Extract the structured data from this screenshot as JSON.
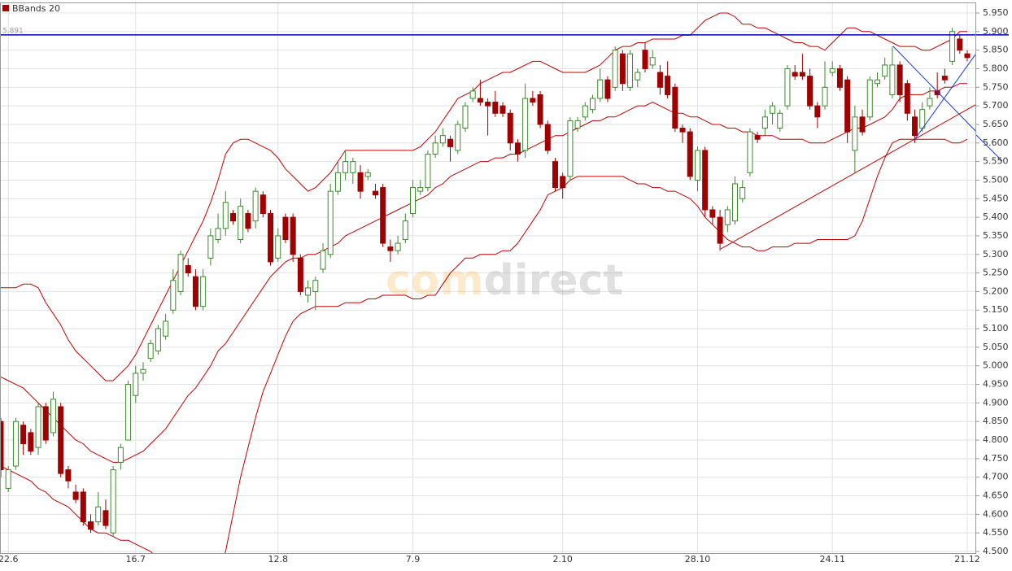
{
  "chart_data": {
    "type": "candlestick",
    "legend": "BBands 20",
    "legend_color": "#a00000",
    "watermark": {
      "left": "com",
      "right": "direct"
    },
    "up_color": "#3b8a2b",
    "down_color": "#a00000",
    "hline": 5.891,
    "hline_color": "#0000c0",
    "grid": true,
    "ylim": [
      4.5,
      5.95
    ],
    "yticks": [
      {
        "value": 4.5,
        "label": "4.500"
      },
      {
        "value": 4.55,
        "label": "4.550"
      },
      {
        "value": 4.6,
        "label": "4.600"
      },
      {
        "value": 4.65,
        "label": "4.650"
      },
      {
        "value": 4.7,
        "label": "4.700"
      },
      {
        "value": 4.75,
        "label": "4.750"
      },
      {
        "value": 4.8,
        "label": "4.800"
      },
      {
        "value": 4.85,
        "label": "4.850"
      },
      {
        "value": 4.9,
        "label": "4.900"
      },
      {
        "value": 4.95,
        "label": "4.950"
      },
      {
        "value": 5.0,
        "label": "5.000"
      },
      {
        "value": 5.05,
        "label": "5.050"
      },
      {
        "value": 5.1,
        "label": "5.100"
      },
      {
        "value": 5.15,
        "label": "5.150"
      },
      {
        "value": 5.2,
        "label": "5.200"
      },
      {
        "value": 5.25,
        "label": "5.250"
      },
      {
        "value": 5.3,
        "label": "5.300"
      },
      {
        "value": 5.35,
        "label": "5.350"
      },
      {
        "value": 5.4,
        "label": "5.400"
      },
      {
        "value": 5.45,
        "label": "5.450"
      },
      {
        "value": 5.5,
        "label": "5.500"
      },
      {
        "value": 5.55,
        "label": "5.550"
      },
      {
        "value": 5.6,
        "label": "5.600"
      },
      {
        "value": 5.65,
        "label": "5.650"
      },
      {
        "value": 5.7,
        "label": "5.700"
      },
      {
        "value": 5.75,
        "label": "5.750"
      },
      {
        "value": 5.8,
        "label": "5.800"
      },
      {
        "value": 5.85,
        "label": "5.850"
      },
      {
        "value": 5.9,
        "label": "5.900"
      },
      {
        "value": 5.95,
        "label": "5.950"
      }
    ],
    "categories": [
      null,
      "22.6",
      null,
      null,
      null,
      null,
      null,
      null,
      null,
      null,
      null,
      null,
      null,
      null,
      null,
      null,
      null,
      null,
      "16.7",
      null,
      null,
      null,
      null,
      null,
      null,
      null,
      null,
      null,
      null,
      null,
      null,
      null,
      null,
      null,
      null,
      null,
      null,
      "12.8",
      null,
      null,
      null,
      null,
      null,
      null,
      null,
      null,
      null,
      null,
      null,
      null,
      null,
      null,
      null,
      null,
      null,
      "7.9",
      null,
      null,
      null,
      null,
      null,
      null,
      null,
      null,
      null,
      null,
      null,
      null,
      null,
      null,
      null,
      null,
      null,
      null,
      null,
      "2.10",
      null,
      null,
      null,
      null,
      null,
      null,
      null,
      null,
      null,
      null,
      null,
      null,
      null,
      null,
      null,
      null,
      null,
      "28.10",
      null,
      null,
      null,
      null,
      null,
      null,
      null,
      null,
      null,
      null,
      null,
      null,
      null,
      null,
      null,
      null,
      null,
      "24.11",
      null,
      null,
      null,
      null,
      null,
      null,
      null,
      null,
      null,
      null,
      null,
      null,
      null,
      null,
      null,
      null,
      null,
      "21.12"
    ],
    "open": [
      4.85,
      4.67,
      4.73,
      4.84,
      4.82,
      4.78,
      4.89,
      4.82,
      4.89,
      4.72,
      4.66,
      4.66,
      4.58,
      4.58,
      4.61,
      4.55,
      4.74,
      4.8,
      4.92,
      4.98,
      5.02,
      5.04,
      5.08,
      5.15,
      5.2,
      5.27,
      5.24,
      5.16,
      5.29,
      5.34,
      5.37,
      5.41,
      5.34,
      5.41,
      5.39,
      5.46,
      5.41,
      5.29,
      5.4,
      5.4,
      5.29,
      5.19,
      5.2,
      5.26,
      5.3,
      5.47,
      5.52,
      5.52,
      5.52,
      5.51,
      5.47,
      5.48,
      5.32,
      5.31,
      5.34,
      5.41,
      5.47,
      5.48,
      5.57,
      5.6,
      5.61,
      5.58,
      5.64,
      5.72,
      5.72,
      5.71,
      5.71,
      5.7,
      5.68,
      5.6,
      5.58,
      5.72,
      5.73,
      5.65,
      5.55,
      5.51,
      5.51,
      5.64,
      5.67,
      5.69,
      5.72,
      5.77,
      5.75,
      5.84,
      5.75,
      5.77,
      5.85,
      5.81,
      5.79,
      5.78,
      5.75,
      5.64,
      5.63,
      5.5,
      5.58,
      5.42,
      5.4,
      5.38,
      5.39,
      5.45,
      5.52,
      5.62,
      5.64,
      5.68,
      5.64,
      5.7,
      5.79,
      5.79,
      5.78,
      5.7,
      5.7,
      5.79,
      5.8,
      5.77,
      5.58,
      5.67,
      5.67,
      5.76,
      5.78,
      5.73,
      5.81,
      5.76,
      5.67,
      5.64,
      5.7,
      5.74,
      5.78,
      5.82,
      5.88,
      5.84
    ],
    "high": [
      4.86,
      4.73,
      4.86,
      4.85,
      4.83,
      4.9,
      4.9,
      4.93,
      4.9,
      4.73,
      4.68,
      4.67,
      4.6,
      4.66,
      4.64,
      4.73,
      4.79,
      4.96,
      5.0,
      5.01,
      5.07,
      5.11,
      5.14,
      5.26,
      5.31,
      5.29,
      5.26,
      5.26,
      5.37,
      5.41,
      5.47,
      5.42,
      5.45,
      5.42,
      5.48,
      5.47,
      5.42,
      5.37,
      5.41,
      5.41,
      5.3,
      5.23,
      5.24,
      5.33,
      5.49,
      5.55,
      5.58,
      5.56,
      5.54,
      5.53,
      5.49,
      5.49,
      5.34,
      5.35,
      5.41,
      5.5,
      5.5,
      5.58,
      5.62,
      5.64,
      5.62,
      5.66,
      5.71,
      5.75,
      5.77,
      5.72,
      5.74,
      5.71,
      5.69,
      5.61,
      5.76,
      5.74,
      5.74,
      5.66,
      5.56,
      5.52,
      5.67,
      5.67,
      5.71,
      5.73,
      5.8,
      5.78,
      5.86,
      5.85,
      5.85,
      5.8,
      5.87,
      5.85,
      5.81,
      5.82,
      5.76,
      5.65,
      5.64,
      5.59,
      5.59,
      5.43,
      5.42,
      5.43,
      5.51,
      5.5,
      5.64,
      5.63,
      5.69,
      5.71,
      5.69,
      5.81,
      5.81,
      5.84,
      5.8,
      5.71,
      5.82,
      5.82,
      5.81,
      5.78,
      5.7,
      5.69,
      5.78,
      5.79,
      5.83,
      5.86,
      5.82,
      5.77,
      5.69,
      5.71,
      5.75,
      5.79,
      5.8,
      5.91,
      5.89,
      5.85
    ],
    "low": [
      4.7,
      4.66,
      4.72,
      4.76,
      4.76,
      4.76,
      4.79,
      4.81,
      4.7,
      4.67,
      4.63,
      4.57,
      4.55,
      4.57,
      4.56,
      4.54,
      4.72,
      4.8,
      4.9,
      4.96,
      5.01,
      5.03,
      5.07,
      5.14,
      5.19,
      5.24,
      5.15,
      5.15,
      5.27,
      5.33,
      5.35,
      5.38,
      5.33,
      5.36,
      5.37,
      5.4,
      5.27,
      5.28,
      5.33,
      5.28,
      5.19,
      5.17,
      5.15,
      5.25,
      5.29,
      5.46,
      5.5,
      5.49,
      5.45,
      5.5,
      5.45,
      5.32,
      5.28,
      5.3,
      5.33,
      5.4,
      5.46,
      5.47,
      5.56,
      5.59,
      5.55,
      5.57,
      5.63,
      5.71,
      5.7,
      5.62,
      5.67,
      5.67,
      5.58,
      5.55,
      5.56,
      5.7,
      5.64,
      5.57,
      5.47,
      5.45,
      5.5,
      5.63,
      5.66,
      5.68,
      5.71,
      5.71,
      5.74,
      5.74,
      5.74,
      5.75,
      5.79,
      5.8,
      5.73,
      5.72,
      5.63,
      5.6,
      5.5,
      5.47,
      5.4,
      5.38,
      5.31,
      5.36,
      5.38,
      5.44,
      5.51,
      5.6,
      5.62,
      5.65,
      5.63,
      5.69,
      5.77,
      5.77,
      5.69,
      5.64,
      5.69,
      5.78,
      5.74,
      5.6,
      5.52,
      5.62,
      5.66,
      5.75,
      5.77,
      5.72,
      5.71,
      5.66,
      5.6,
      5.63,
      5.69,
      5.72,
      5.76,
      5.81,
      5.84,
      5.82
    ],
    "close": [
      4.72,
      4.72,
      4.85,
      4.79,
      4.77,
      4.89,
      4.8,
      4.91,
      4.71,
      4.69,
      4.64,
      4.58,
      4.56,
      4.62,
      4.57,
      4.72,
      4.78,
      4.95,
      4.98,
      4.99,
      5.06,
      5.1,
      5.12,
      5.23,
      5.3,
      5.25,
      5.16,
      5.24,
      5.35,
      5.37,
      5.44,
      5.39,
      5.43,
      5.37,
      5.47,
      5.41,
      5.28,
      5.35,
      5.34,
      5.3,
      5.2,
      5.21,
      5.23,
      5.31,
      5.47,
      5.52,
      5.55,
      5.55,
      5.47,
      5.52,
      5.46,
      5.33,
      5.31,
      5.33,
      5.39,
      5.48,
      5.48,
      5.57,
      5.6,
      5.62,
      5.59,
      5.65,
      5.7,
      5.74,
      5.71,
      5.7,
      5.68,
      5.68,
      5.6,
      5.57,
      5.72,
      5.71,
      5.65,
      5.58,
      5.48,
      5.48,
      5.66,
      5.66,
      5.7,
      5.72,
      5.77,
      5.72,
      5.85,
      5.76,
      5.84,
      5.79,
      5.8,
      5.83,
      5.75,
      5.73,
      5.64,
      5.63,
      5.51,
      5.58,
      5.42,
      5.4,
      5.33,
      5.42,
      5.49,
      5.48,
      5.63,
      5.61,
      5.67,
      5.7,
      5.68,
      5.8,
      5.78,
      5.78,
      5.7,
      5.67,
      5.75,
      5.8,
      5.75,
      5.63,
      5.67,
      5.63,
      5.77,
      5.77,
      5.81,
      5.81,
      5.73,
      5.68,
      5.62,
      5.69,
      5.72,
      5.73,
      5.77,
      5.9,
      5.85,
      5.83
    ],
    "bands": {
      "name": "BBands 20",
      "color": "#c00000",
      "upper": [
        5.21,
        5.21,
        5.21,
        5.22,
        5.22,
        5.21,
        5.17,
        5.14,
        5.11,
        5.07,
        5.04,
        5.02,
        5.0,
        4.98,
        4.96,
        4.96,
        4.98,
        5.0,
        5.03,
        5.07,
        5.11,
        5.15,
        5.19,
        5.23,
        5.27,
        5.31,
        5.35,
        5.39,
        5.44,
        5.5,
        5.57,
        5.6,
        5.61,
        5.61,
        5.6,
        5.59,
        5.58,
        5.56,
        5.53,
        5.51,
        5.49,
        5.47,
        5.48,
        5.5,
        5.52,
        5.55,
        5.58,
        5.58,
        5.58,
        5.58,
        5.58,
        5.58,
        5.58,
        5.58,
        5.58,
        5.58,
        5.59,
        5.61,
        5.63,
        5.66,
        5.69,
        5.72,
        5.73,
        5.74,
        5.76,
        5.77,
        5.78,
        5.79,
        5.79,
        5.8,
        5.81,
        5.82,
        5.82,
        5.81,
        5.8,
        5.79,
        5.79,
        5.79,
        5.79,
        5.8,
        5.81,
        5.83,
        5.85,
        5.86,
        5.86,
        5.87,
        5.87,
        5.88,
        5.88,
        5.88,
        5.88,
        5.89,
        5.89,
        5.91,
        5.93,
        5.94,
        5.95,
        5.95,
        5.94,
        5.92,
        5.92,
        5.91,
        5.91,
        5.9,
        5.89,
        5.88,
        5.87,
        5.87,
        5.86,
        5.86,
        5.85,
        5.87,
        5.89,
        5.91,
        5.91,
        5.9,
        5.9,
        5.89,
        5.88,
        5.87,
        5.86,
        5.86,
        5.86,
        5.85,
        5.85,
        5.86,
        5.87,
        5.88,
        5.9,
        5.9
      ],
      "middle": [
        4.97,
        4.96,
        4.95,
        4.94,
        4.92,
        4.9,
        4.88,
        4.86,
        4.84,
        4.82,
        4.8,
        4.79,
        4.77,
        4.76,
        4.75,
        4.74,
        4.74,
        4.75,
        4.76,
        4.77,
        4.79,
        4.81,
        4.83,
        4.86,
        4.89,
        4.92,
        4.94,
        4.97,
        5.0,
        5.04,
        5.06,
        5.09,
        5.12,
        5.15,
        5.18,
        5.21,
        5.24,
        5.26,
        5.28,
        5.29,
        5.29,
        5.3,
        5.3,
        5.31,
        5.32,
        5.33,
        5.35,
        5.36,
        5.37,
        5.38,
        5.39,
        5.4,
        5.41,
        5.42,
        5.43,
        5.44,
        5.45,
        5.46,
        5.48,
        5.49,
        5.51,
        5.52,
        5.53,
        5.54,
        5.55,
        5.55,
        5.56,
        5.56,
        5.57,
        5.57,
        5.58,
        5.59,
        5.6,
        5.61,
        5.62,
        5.62,
        5.63,
        5.64,
        5.65,
        5.66,
        5.66,
        5.67,
        5.67,
        5.68,
        5.69,
        5.7,
        5.7,
        5.71,
        5.7,
        5.69,
        5.68,
        5.68,
        5.67,
        5.67,
        5.66,
        5.65,
        5.65,
        5.64,
        5.64,
        5.63,
        5.63,
        5.62,
        5.62,
        5.62,
        5.61,
        5.61,
        5.61,
        5.61,
        5.6,
        5.6,
        5.6,
        5.61,
        5.62,
        5.63,
        5.64,
        5.64,
        5.65,
        5.66,
        5.67,
        5.69,
        5.72,
        5.73,
        5.73,
        5.73,
        5.74,
        5.74,
        5.75,
        5.75,
        5.76,
        5.76
      ],
      "lower": [
        4.73,
        4.72,
        4.71,
        4.7,
        4.69,
        4.67,
        4.66,
        4.64,
        4.63,
        4.62,
        4.6,
        4.58,
        4.56,
        4.55,
        4.55,
        4.54,
        4.53,
        4.53,
        4.52,
        4.51,
        4.5,
        4.48,
        4.47,
        4.46,
        4.45,
        4.44,
        4.43,
        4.42,
        4.42,
        4.44,
        4.5,
        4.6,
        4.7,
        4.78,
        4.86,
        4.93,
        4.98,
        5.03,
        5.08,
        5.12,
        5.14,
        5.15,
        5.16,
        5.16,
        5.16,
        5.16,
        5.17,
        5.17,
        5.17,
        5.18,
        5.18,
        5.19,
        5.19,
        5.19,
        5.19,
        5.18,
        5.18,
        5.19,
        5.19,
        5.22,
        5.25,
        5.27,
        5.29,
        5.29,
        5.3,
        5.3,
        5.3,
        5.31,
        5.31,
        5.33,
        5.36,
        5.39,
        5.42,
        5.46,
        5.47,
        5.48,
        5.5,
        5.51,
        5.51,
        5.51,
        5.51,
        5.51,
        5.51,
        5.51,
        5.5,
        5.49,
        5.49,
        5.48,
        5.48,
        5.47,
        5.47,
        5.46,
        5.45,
        5.43,
        5.4,
        5.38,
        5.36,
        5.34,
        5.33,
        5.32,
        5.32,
        5.31,
        5.31,
        5.32,
        5.32,
        5.32,
        5.33,
        5.33,
        5.33,
        5.34,
        5.34,
        5.34,
        5.34,
        5.34,
        5.35,
        5.39,
        5.45,
        5.51,
        5.56,
        5.6,
        5.61,
        5.61,
        5.61,
        5.61,
        5.61,
        5.61,
        5.61,
        5.6,
        5.6,
        5.61
      ]
    }
  }
}
